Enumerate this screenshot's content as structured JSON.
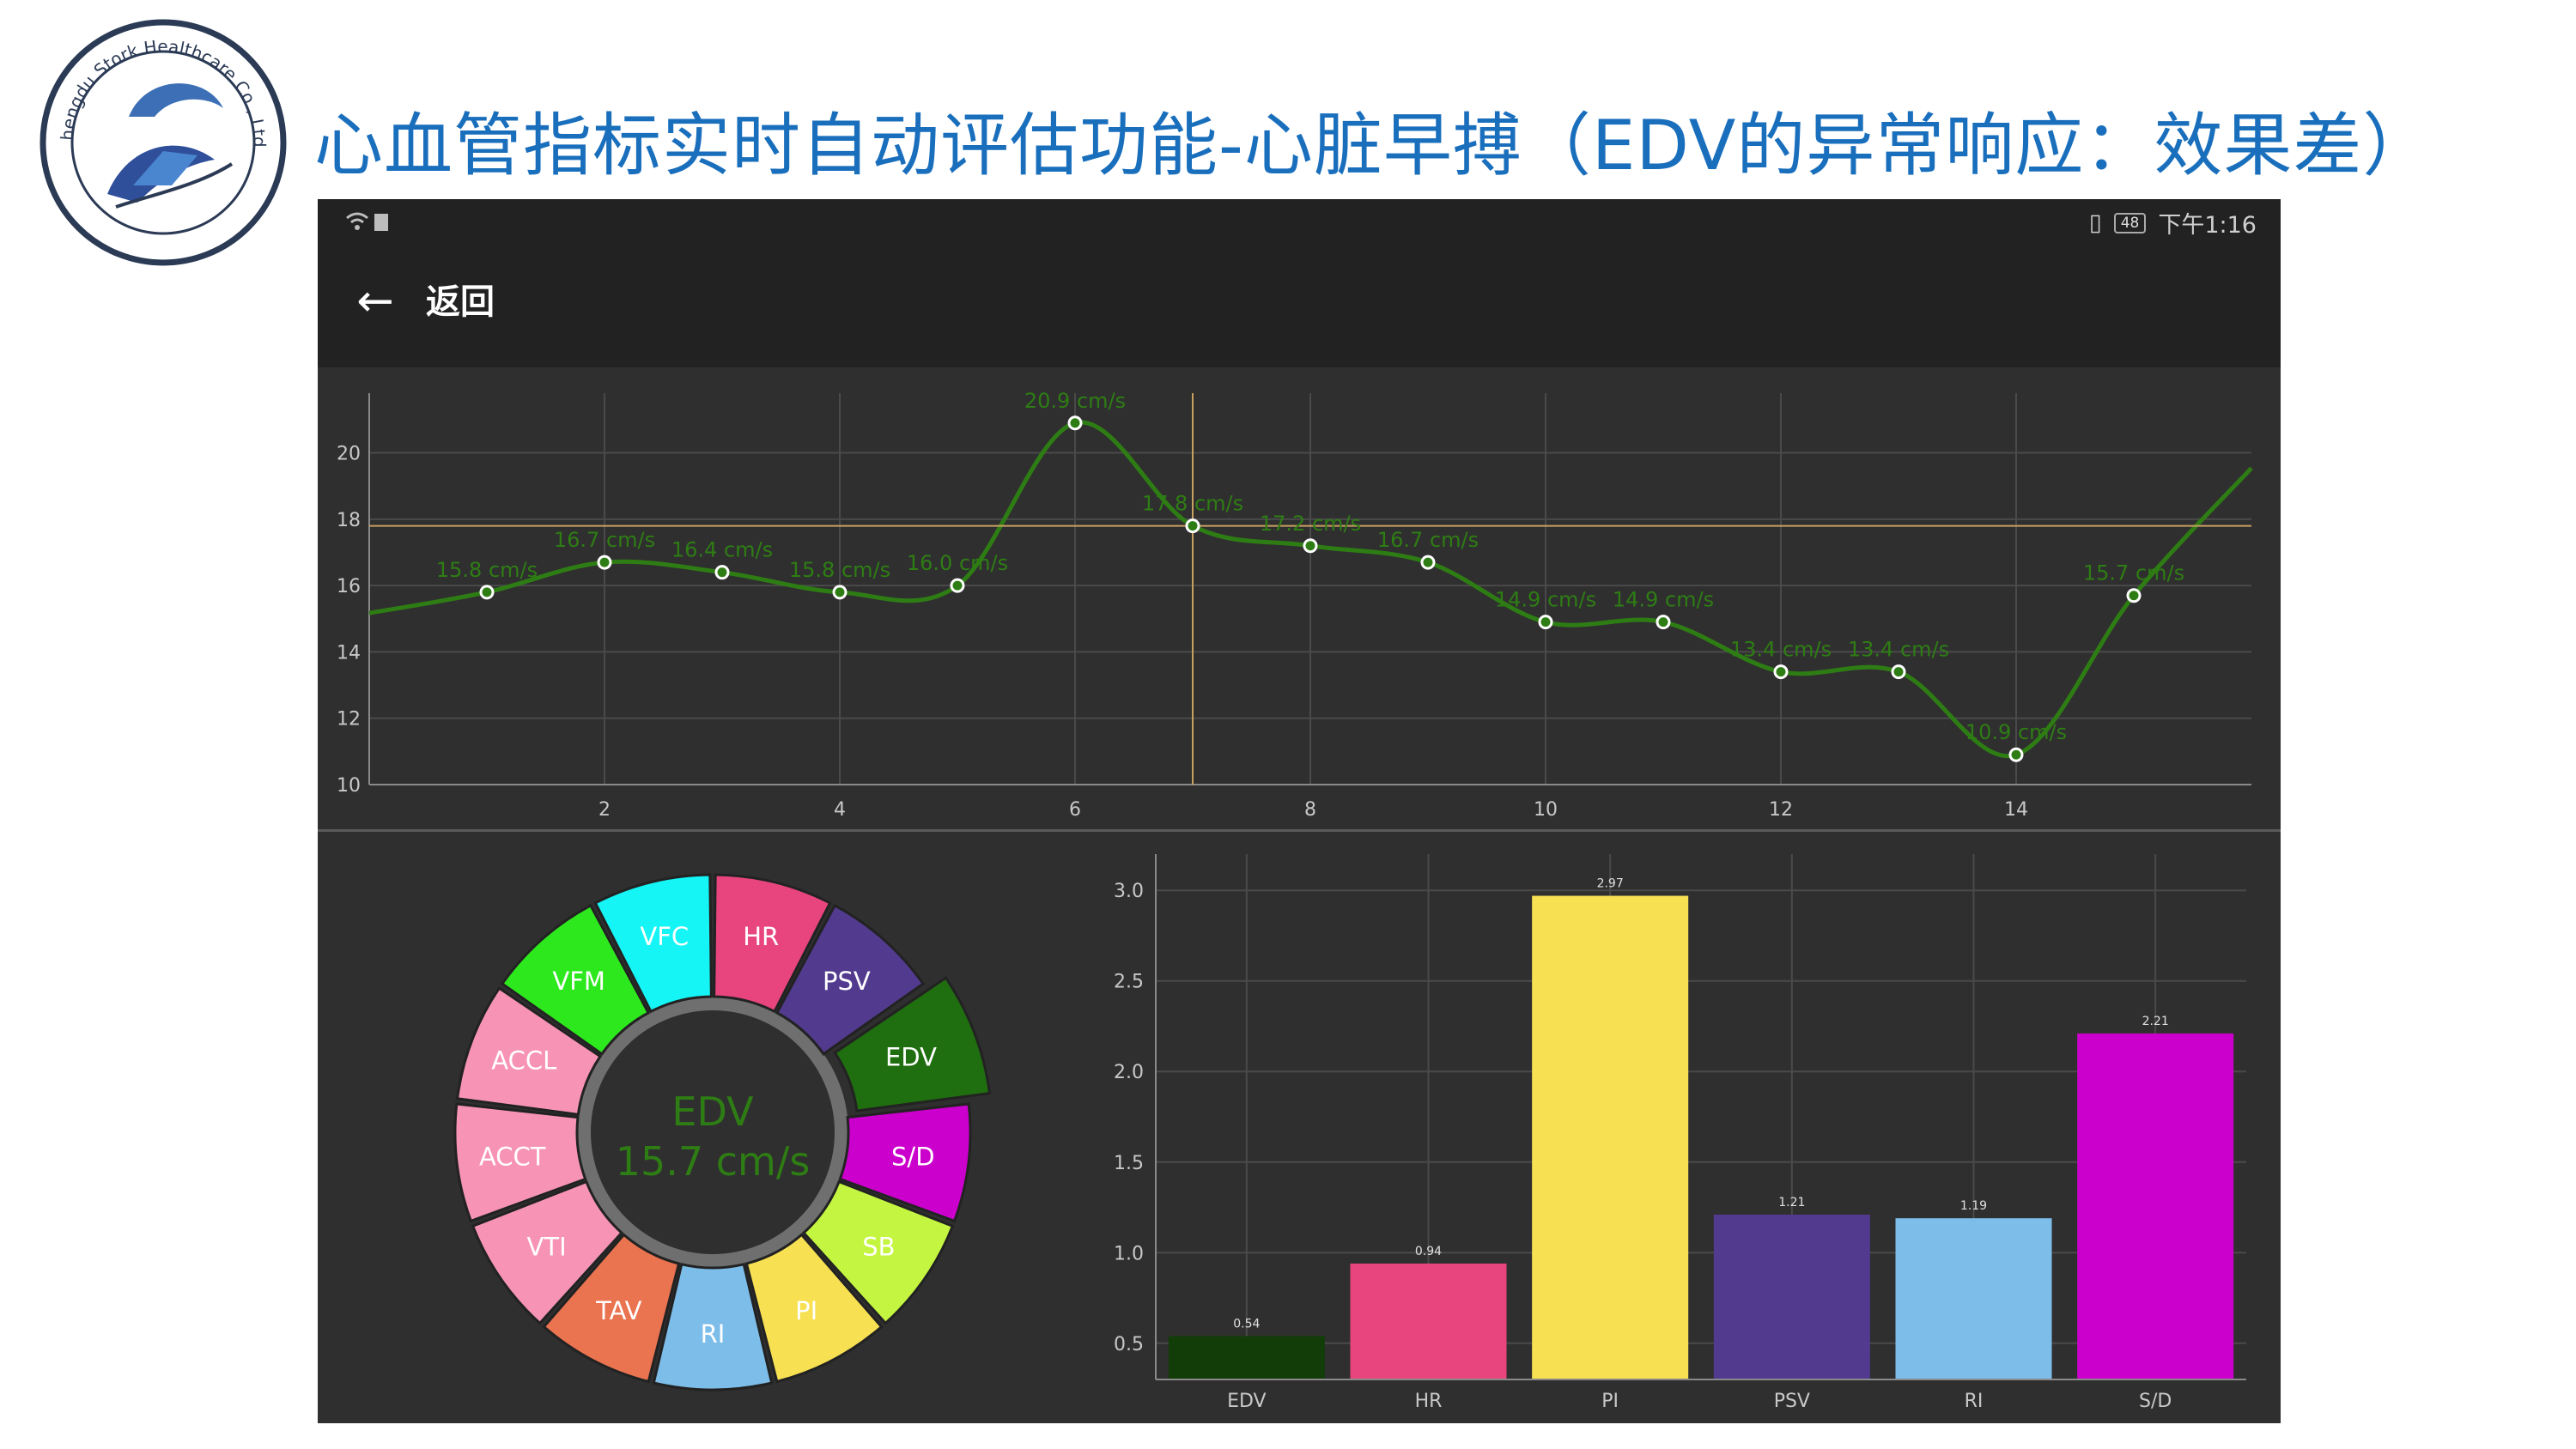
{
  "slide": {
    "title": "心血管指标实时自动评估功能-心脏早搏（EDV的异常响应：效果差）",
    "logo_text": "Chengdu Stork Healthcare Co., Ltd."
  },
  "status_bar": {
    "time": "下午1:16",
    "battery": "48",
    "left_icons": "wifi-icon"
  },
  "app_bar": {
    "back_label": "返回"
  },
  "colors": {
    "line": "#2e7d14",
    "cursor": "#c8a060",
    "background": "#2f2f2f",
    "grid": "#4a4a4a"
  },
  "line_chart": {
    "type": "line",
    "x_ticks": [
      "2",
      "4",
      "6",
      "8",
      "10",
      "12",
      "14"
    ],
    "y_ticks": [
      "10",
      "12",
      "14",
      "16",
      "18",
      "20"
    ],
    "xlim": [
      0.0,
      16.0
    ],
    "ylim": [
      10,
      21.8
    ],
    "cursor_x": 7,
    "cursor_y": 17.8,
    "points": [
      {
        "x": 1,
        "y": 15.8,
        "label": "15.8 cm/s"
      },
      {
        "x": 2,
        "y": 16.7,
        "label": "16.7 cm/s"
      },
      {
        "x": 3,
        "y": 16.4,
        "label": "16.4 cm/s"
      },
      {
        "x": 4,
        "y": 15.8,
        "label": "15.8 cm/s"
      },
      {
        "x": 5,
        "y": 16.0,
        "label": "16.0 cm/s"
      },
      {
        "x": 6,
        "y": 20.9,
        "label": "20.9 cm/s"
      },
      {
        "x": 7,
        "y": 17.8,
        "label": "17.8 cm/s"
      },
      {
        "x": 8,
        "y": 17.2,
        "label": "17.2 cm/s"
      },
      {
        "x": 9,
        "y": 16.7,
        "label": "16.7 cm/s"
      },
      {
        "x": 10,
        "y": 14.9,
        "label": "14.9 cm/s"
      },
      {
        "x": 11,
        "y": 14.9,
        "label": "14.9 cm/s"
      },
      {
        "x": 12,
        "y": 13.4,
        "label": "13.4 cm/s"
      },
      {
        "x": 13,
        "y": 13.4,
        "label": "13.4 cm/s"
      },
      {
        "x": 14,
        "y": 10.9,
        "label": "10.9 cm/s"
      },
      {
        "x": 15,
        "y": 15.7,
        "label": "15.7 cm/s"
      }
    ]
  },
  "donut": {
    "center_name": "EDV",
    "center_value": "15.7 cm/s",
    "center_color": "#2e7d14",
    "selected": "EDV",
    "segments": [
      {
        "label": "HR",
        "color": "#e8457f",
        "text_color": "#ffffff"
      },
      {
        "label": "PSV",
        "color": "#523a8f",
        "text_color": "#ffffff"
      },
      {
        "label": "EDV",
        "color": "#1f6e0f",
        "text_color": "#ffffff"
      },
      {
        "label": "S/D",
        "color": "#cc00cc",
        "text_color": "#ffffff"
      },
      {
        "label": "SB",
        "color": "#c4f540",
        "text_color": "#ffffff"
      },
      {
        "label": "PI",
        "color": "#f7e052",
        "text_color": "#ffffff"
      },
      {
        "label": "RI",
        "color": "#7dbde9",
        "text_color": "#ffffff"
      },
      {
        "label": "TAV",
        "color": "#ea7350",
        "text_color": "#ffffff"
      },
      {
        "label": "VTI",
        "color": "#f794b5",
        "text_color": "#ffffff"
      },
      {
        "label": "ACCT",
        "color": "#f794b5",
        "text_color": "#ffffff"
      },
      {
        "label": "ACCL",
        "color": "#f794b5",
        "text_color": "#ffffff"
      },
      {
        "label": "VFM",
        "color": "#2ee81e",
        "text_color": "#ffffff"
      },
      {
        "label": "VFC",
        "color": "#15f5f5",
        "text_color": "#ffffff"
      }
    ]
  },
  "chart_data": {
    "type": "bar",
    "categories": [
      "EDV",
      "HR",
      "PI",
      "PSV",
      "RI",
      "S/D"
    ],
    "values": [
      0.54,
      0.94,
      2.97,
      1.21,
      1.19,
      2.21
    ],
    "value_labels": [
      "0.54",
      "0.94",
      "2.97",
      "1.21",
      "1.19",
      "2.21"
    ],
    "colors": [
      "#123d09",
      "#e8457f",
      "#f7e052",
      "#523a8f",
      "#7dbde9",
      "#cc00cc"
    ],
    "y_ticks": [
      "0.5",
      "1.0",
      "1.5",
      "2.0",
      "2.5",
      "3.0"
    ],
    "ylim": [
      0.3,
      3.2
    ],
    "grid": true
  }
}
